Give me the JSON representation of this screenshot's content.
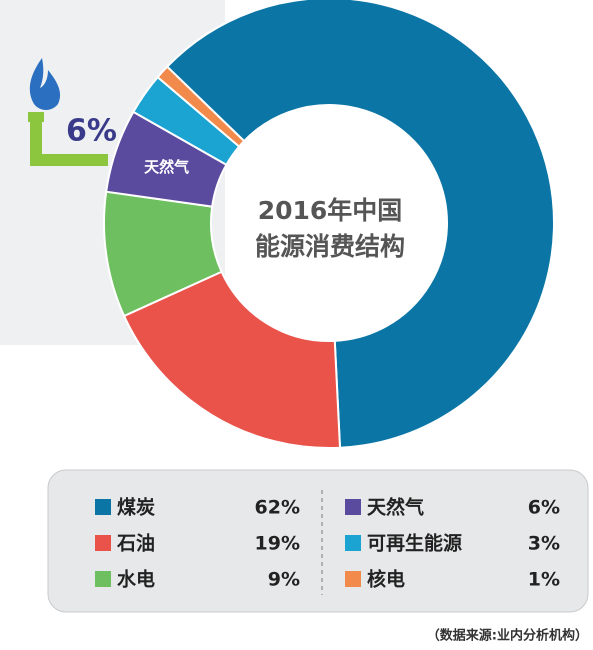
{
  "chart_data": {
    "type": "pie",
    "title": [
      "2016年中国",
      "能源消费结构"
    ],
    "categories": [
      "煤炭",
      "石油",
      "水电",
      "天然气",
      "可再生能源",
      "核电"
    ],
    "values": [
      62,
      19,
      9,
      6,
      3,
      1
    ],
    "value_labels": [
      "62%",
      "19%",
      "9%",
      "6%",
      "3%",
      "1%"
    ],
    "colors": [
      "#0b76a6",
      "#e9534a",
      "#6dbf5f",
      "#5b4b9f",
      "#1ba3d2",
      "#f18a4b"
    ],
    "source": "（数据来源:业内分析机构）"
  }
}
